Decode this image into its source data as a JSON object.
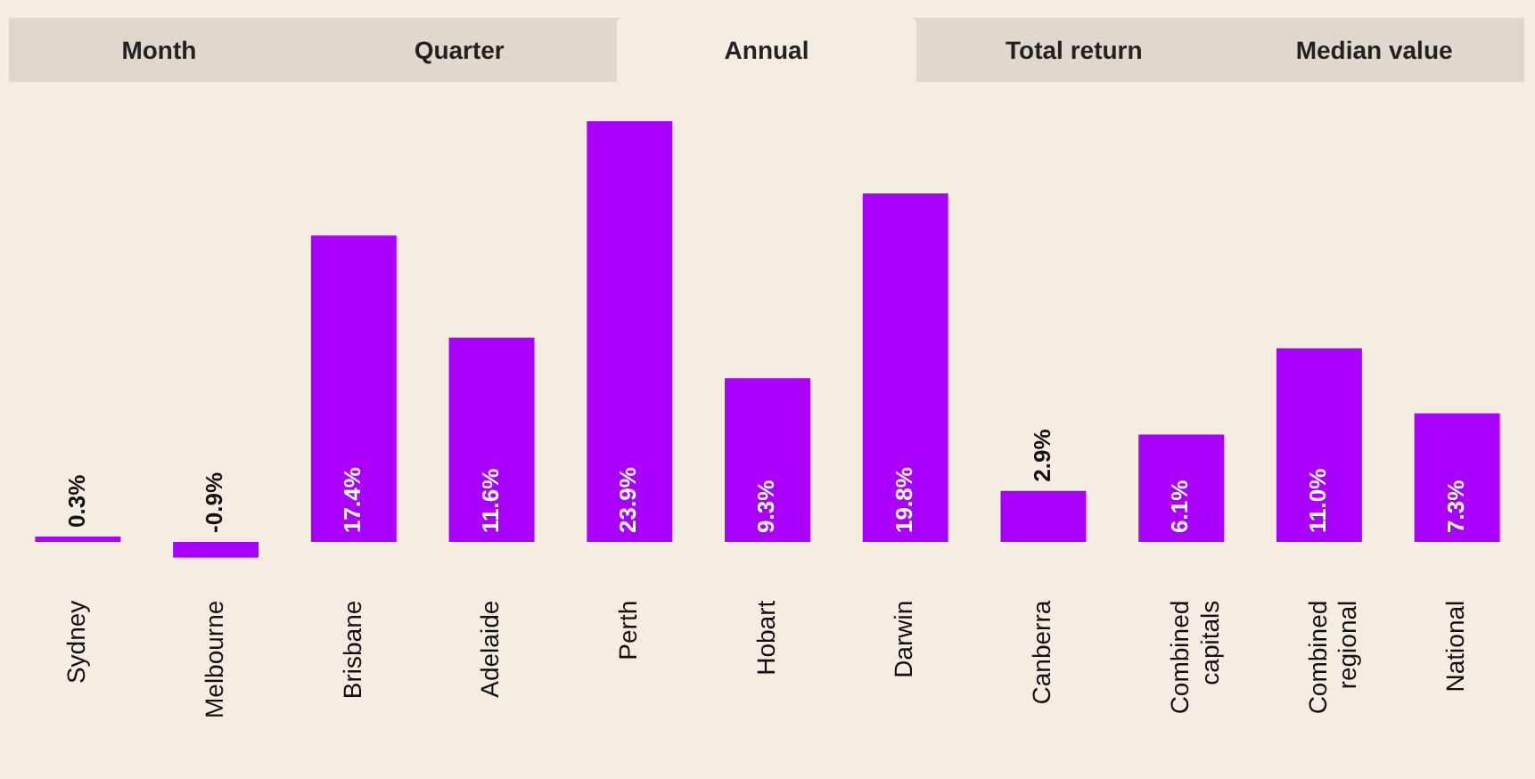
{
  "chart_data": {
    "type": "bar",
    "annotations": [
      "Month",
      "Quarter",
      "Annual",
      "Total return",
      "Median value"
    ],
    "categories": [
      "Sydney",
      "Melbourne",
      "Brisbane",
      "Adelaide",
      "Perth",
      "Hobart",
      "Darwin",
      "Canberra",
      "Combined capitals",
      "Combined regional",
      "National"
    ],
    "values": [
      0.3,
      -0.9,
      17.4,
      11.6,
      23.9,
      9.3,
      19.8,
      2.9,
      6.1,
      11.0,
      7.3
    ],
    "value_labels": [
      "0.3%",
      "-0.9%",
      "17.4%",
      "11.6%",
      "23.9%",
      "9.3%",
      "19.8%",
      "2.9%",
      "6.1%",
      "11.0%",
      "7.3%"
    ],
    "color": "#aa00ff",
    "grid": false,
    "legend": false
  }
}
